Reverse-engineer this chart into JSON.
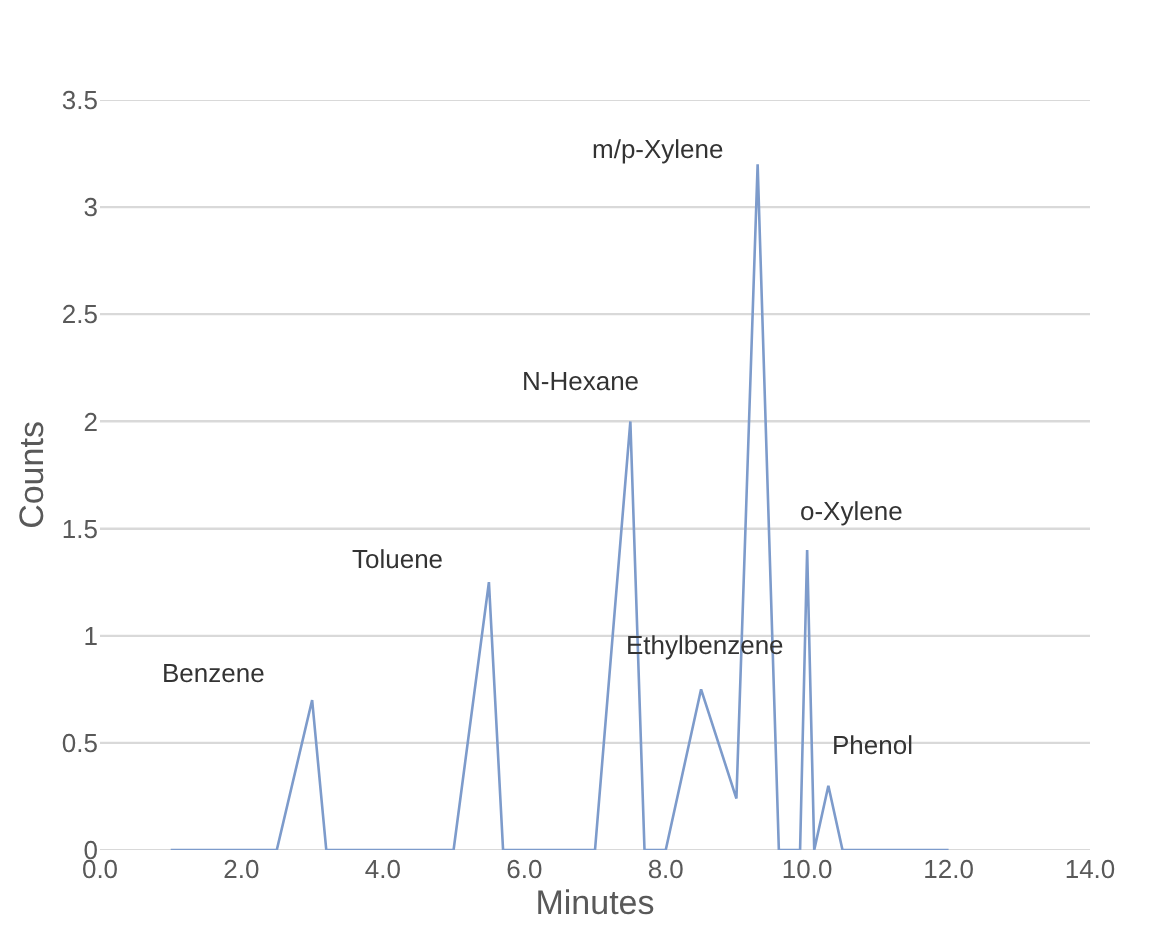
{
  "chart_data": {
    "type": "line",
    "xlabel": "Minutes",
    "ylabel": "Counts",
    "x": [
      1.0,
      2.5,
      3.0,
      3.2,
      5.0,
      5.5,
      5.7,
      7.0,
      7.5,
      7.7,
      8.0,
      8.5,
      9.0,
      9.3,
      9.6,
      9.9,
      10.0,
      10.1,
      10.3,
      10.5,
      12.0
    ],
    "series": [
      {
        "color": "#7d9bcb",
        "values": [
          0,
          0,
          0.7,
          0,
          0,
          1.25,
          0,
          0,
          2.0,
          0,
          0,
          0.75,
          0.24,
          3.2,
          0,
          0,
          1.4,
          0,
          0.3,
          0,
          0
        ]
      }
    ],
    "xlim": [
      0,
      14
    ],
    "xticks": [
      {
        "value": 0,
        "label": "0.0"
      },
      {
        "value": 2,
        "label": "2.0"
      },
      {
        "value": 4,
        "label": "4.0"
      },
      {
        "value": 6,
        "label": "6.0"
      },
      {
        "value": 8,
        "label": "8.0"
      },
      {
        "value": 10,
        "label": "10.0"
      },
      {
        "value": 12,
        "label": "12.0"
      },
      {
        "value": 14,
        "label": "14.0"
      }
    ],
    "ylim": [
      0,
      3.5
    ],
    "yticks": [
      0,
      0.5,
      1,
      1.5,
      2,
      2.5,
      3,
      3.5
    ],
    "grid": "y",
    "marker": "none",
    "line_style": "solid",
    "annotations": [
      {
        "text": "Benzene",
        "x": 3.0,
        "y": 0.7
      },
      {
        "text": "Toluene",
        "x": 5.5,
        "y": 1.25
      },
      {
        "text": "N-Hexane",
        "x": 7.5,
        "y": 2.0
      },
      {
        "text": "Ethylbenzene",
        "x": 8.5,
        "y": 0.75
      },
      {
        "text": "m/p-Xylene",
        "x": 9.3,
        "y": 3.2
      },
      {
        "text": "o-Xylene",
        "x": 10.0,
        "y": 1.4
      },
      {
        "text": "Phenol",
        "x": 10.3,
        "y": 0.3
      }
    ]
  }
}
